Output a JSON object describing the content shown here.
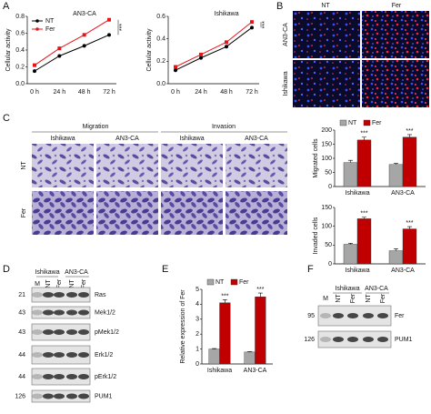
{
  "panel_letters": [
    "A",
    "B",
    "C",
    "D",
    "E",
    "F"
  ],
  "chart_data": [
    {
      "type": "line",
      "title": "AN3-CA",
      "ylabel": "Cellular activity",
      "categories": [
        "0 h",
        "24 h",
        "48 h",
        "72 h"
      ],
      "series": [
        {
          "name": "NT",
          "color": "#000000",
          "values": [
            0.15,
            0.33,
            0.45,
            0.58
          ]
        },
        {
          "name": "Fer",
          "color": "#e8141b",
          "values": [
            0.22,
            0.42,
            0.58,
            0.76
          ]
        }
      ],
      "ylim": [
        0,
        0.8
      ],
      "yticks": [
        {
          "value": 0,
          "label": "0.0"
        },
        0.2,
        0.4,
        0.6,
        0.8
      ],
      "annotation": "***"
    },
    {
      "type": "line",
      "title": "Ishikawa",
      "ylabel": "Cellular activity",
      "categories": [
        "0 h",
        "24 h",
        "48 h",
        "72 h"
      ],
      "series": [
        {
          "color": "#000000",
          "values": [
            0.12,
            0.23,
            0.33,
            0.5
          ]
        },
        {
          "color": "#e8141b",
          "values": [
            0.15,
            0.26,
            0.37,
            0.55
          ]
        }
      ],
      "ylim": [
        0,
        0.6
      ],
      "yticks": [
        {
          "value": 0,
          "label": "0.0"
        },
        0.2,
        0.4,
        0.6
      ],
      "annotation": "***"
    },
    {
      "type": "bar",
      "ylabel": "Migrated cells",
      "categories": [
        "Ishikawa",
        "AN3-CA"
      ],
      "series": [
        {
          "name": "NT",
          "color": "#a6a6a6",
          "values": [
            85,
            78
          ],
          "errors": [
            8,
            4
          ]
        },
        {
          "name": "Fer",
          "color": "#c00000",
          "values": [
            165,
            175
          ],
          "errors": [
            10,
            9
          ]
        }
      ],
      "ylim": [
        0,
        200
      ],
      "yticks": [
        0,
        50,
        100,
        150,
        200
      ],
      "annotations": [
        "***",
        "***"
      ]
    },
    {
      "type": "bar",
      "ylabel": "Invaded cells",
      "categories": [
        "Ishikawa",
        "AN3-CA"
      ],
      "series": [
        {
          "color": "#a6a6a6",
          "values": [
            52,
            35
          ],
          "errors": [
            3,
            5
          ]
        },
        {
          "color": "#c00000",
          "values": [
            120,
            93
          ],
          "errors": [
            4,
            6
          ]
        }
      ],
      "ylim": [
        0,
        150
      ],
      "yticks": [
        0,
        50,
        100,
        150
      ],
      "annotations": [
        "***",
        "***"
      ]
    },
    {
      "type": "bar",
      "ylabel": "Relative expression of Fer",
      "categories": [
        "Ishikawa",
        "AN3-CA"
      ],
      "series": [
        {
          "name": "NT",
          "color": "#a6a6a6",
          "values": [
            1.0,
            0.8
          ],
          "errors": [
            0.03,
            0.03
          ]
        },
        {
          "name": "Fer",
          "color": "#c00000",
          "values": [
            4.1,
            4.5
          ],
          "errors": [
            0.2,
            0.25
          ]
        }
      ],
      "ylim": [
        0,
        5
      ],
      "yticks": [
        0,
        1,
        2,
        3,
        4,
        5
      ],
      "annotations": [
        "***",
        "***"
      ]
    }
  ],
  "panel_b": {
    "columns": [
      "NT",
      "Fer"
    ],
    "rows": [
      "AN3-CA",
      "Ishikawa"
    ]
  },
  "panel_c": {
    "groups": [
      "Migration",
      "Invasion"
    ],
    "columns": [
      "Ishikawa",
      "AN3-CA",
      "Ishikawa",
      "AN3-CA"
    ],
    "rows": [
      "NT",
      "Fer"
    ]
  },
  "panel_d": {
    "cell_lines": [
      "Ishikawa",
      "AN3-CA"
    ],
    "lanes": [
      "M",
      "NT",
      "Fer",
      "NT",
      "Fer"
    ],
    "bands": [
      {
        "marker": "21",
        "protein": "Ras"
      },
      {
        "marker": "43",
        "protein": "Mek1/2"
      },
      {
        "marker": "43",
        "protein": "pMek1/2"
      },
      {
        "marker": "44",
        "protein": "Erk1/2"
      },
      {
        "marker": "44",
        "protein": "pErk1/2"
      },
      {
        "marker": "126",
        "protein": "PUM1"
      }
    ]
  },
  "panel_f": {
    "cell_lines": [
      "Ishikawa",
      "AN3-CA"
    ],
    "lanes": [
      "M",
      "NT",
      "Fer",
      "NT",
      "Fer"
    ],
    "bands": [
      {
        "marker": "95",
        "protein": "Fer"
      },
      {
        "marker": "126",
        "protein": "PUM1"
      }
    ]
  }
}
